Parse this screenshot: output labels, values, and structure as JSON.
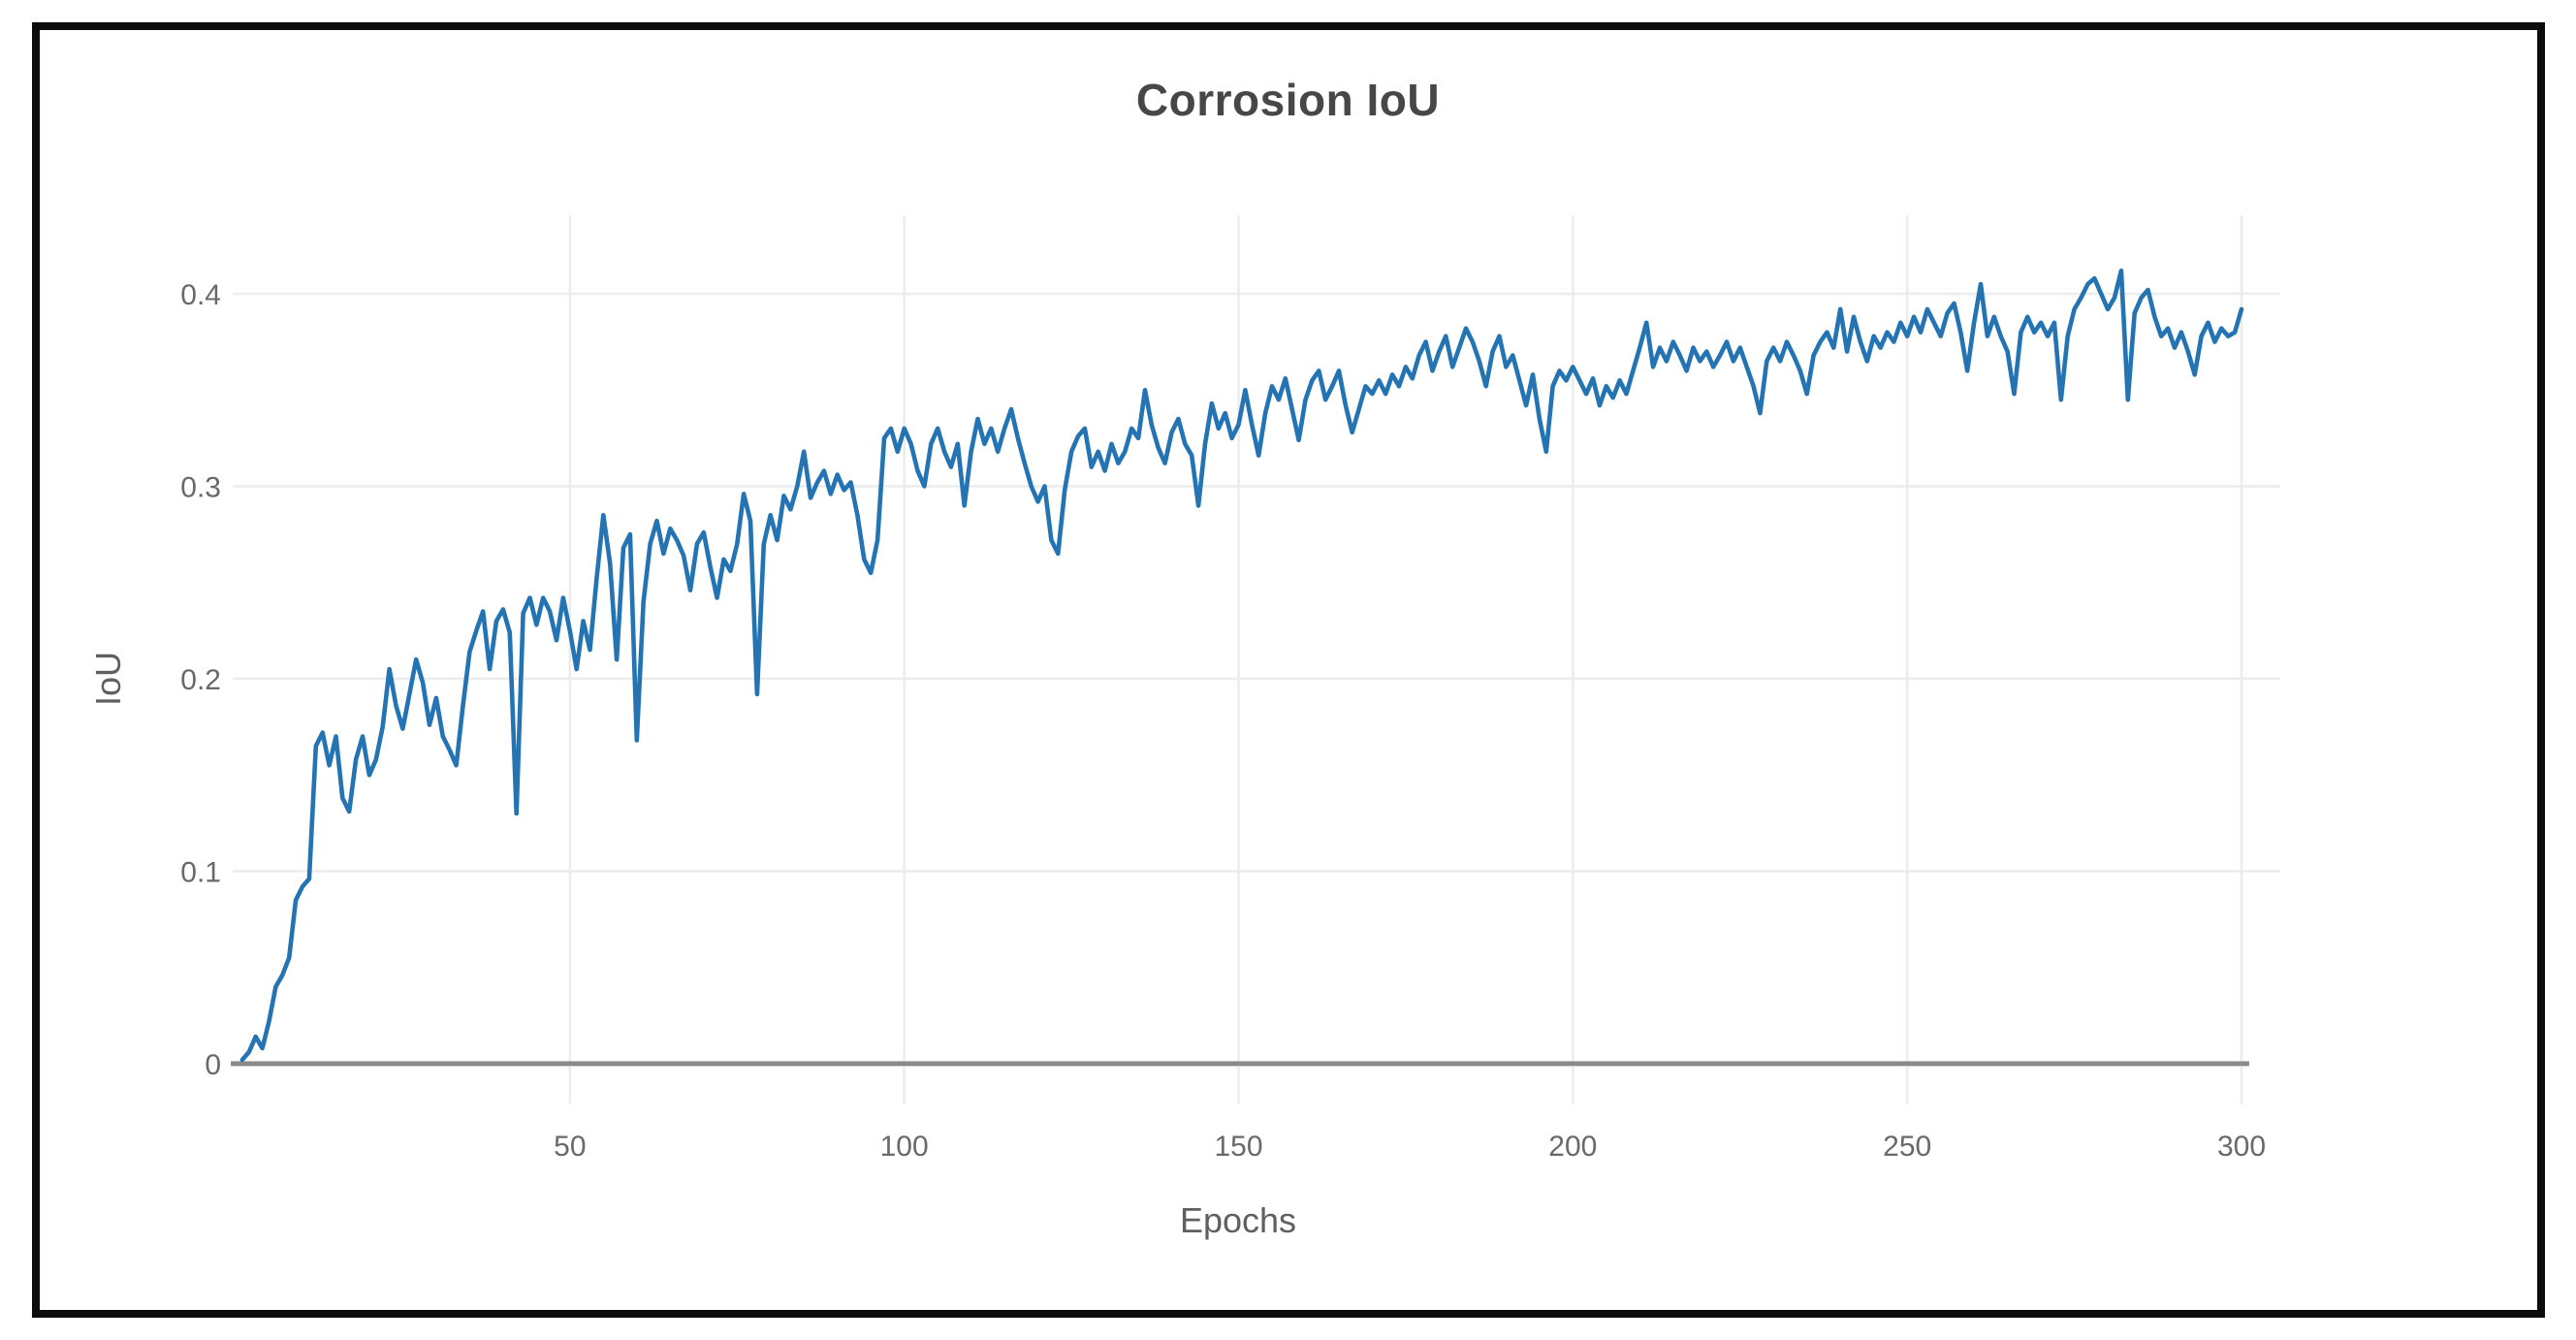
{
  "page": {
    "background_color": "#ffffff",
    "border_color": "#0d0d0d"
  },
  "chart_data": {
    "type": "line",
    "title": "Corrosion IoU",
    "xlabel": "Epochs",
    "ylabel": "IoU",
    "series_name": "Corrosion IoU",
    "line_color": "#2474b4",
    "grid": true,
    "grid_color": "#ececec",
    "axis_line_color": "#8a8a8a",
    "tick_label_color": "#696969",
    "title_color": "#474747",
    "x_ticks": [
      50,
      100,
      150,
      200,
      250,
      300
    ],
    "y_ticks": [
      0,
      0.1,
      0.2,
      0.3,
      0.4
    ],
    "y_tick_labels": [
      "0",
      "0.1",
      "0.2",
      "0.3",
      "0.4"
    ],
    "xlim": [
      0,
      300
    ],
    "ylim": [
      0,
      0.43
    ],
    "legend": "none",
    "x_start": 1,
    "x_step": 1,
    "values": [
      0.002,
      0.006,
      0.014,
      0.008,
      0.022,
      0.04,
      0.046,
      0.055,
      0.085,
      0.092,
      0.096,
      0.165,
      0.172,
      0.155,
      0.17,
      0.138,
      0.131,
      0.158,
      0.17,
      0.15,
      0.158,
      0.175,
      0.205,
      0.186,
      0.174,
      0.192,
      0.21,
      0.198,
      0.176,
      0.19,
      0.17,
      0.163,
      0.155,
      0.186,
      0.214,
      0.225,
      0.235,
      0.205,
      0.23,
      0.236,
      0.224,
      0.13,
      0.234,
      0.242,
      0.228,
      0.242,
      0.235,
      0.22,
      0.242,
      0.225,
      0.205,
      0.23,
      0.215,
      0.252,
      0.285,
      0.26,
      0.21,
      0.268,
      0.275,
      0.168,
      0.24,
      0.27,
      0.282,
      0.265,
      0.278,
      0.272,
      0.264,
      0.246,
      0.27,
      0.276,
      0.258,
      0.242,
      0.262,
      0.256,
      0.27,
      0.296,
      0.282,
      0.192,
      0.27,
      0.285,
      0.272,
      0.295,
      0.288,
      0.3,
      0.318,
      0.294,
      0.302,
      0.308,
      0.296,
      0.306,
      0.298,
      0.302,
      0.285,
      0.262,
      0.255,
      0.272,
      0.325,
      0.33,
      0.318,
      0.33,
      0.322,
      0.308,
      0.3,
      0.322,
      0.33,
      0.318,
      0.31,
      0.322,
      0.29,
      0.318,
      0.335,
      0.322,
      0.33,
      0.318,
      0.33,
      0.34,
      0.325,
      0.312,
      0.3,
      0.292,
      0.3,
      0.272,
      0.265,
      0.298,
      0.318,
      0.326,
      0.33,
      0.31,
      0.318,
      0.308,
      0.322,
      0.312,
      0.318,
      0.33,
      0.325,
      0.35,
      0.332,
      0.32,
      0.312,
      0.328,
      0.335,
      0.322,
      0.316,
      0.29,
      0.322,
      0.343,
      0.33,
      0.338,
      0.325,
      0.332,
      0.35,
      0.332,
      0.316,
      0.338,
      0.352,
      0.345,
      0.356,
      0.34,
      0.324,
      0.345,
      0.355,
      0.36,
      0.345,
      0.352,
      0.36,
      0.342,
      0.328,
      0.34,
      0.352,
      0.348,
      0.355,
      0.348,
      0.358,
      0.352,
      0.362,
      0.356,
      0.368,
      0.375,
      0.36,
      0.37,
      0.378,
      0.362,
      0.372,
      0.382,
      0.375,
      0.365,
      0.352,
      0.37,
      0.378,
      0.362,
      0.368,
      0.355,
      0.342,
      0.358,
      0.335,
      0.318,
      0.352,
      0.36,
      0.355,
      0.362,
      0.355,
      0.348,
      0.356,
      0.342,
      0.352,
      0.346,
      0.355,
      0.348,
      0.36,
      0.372,
      0.385,
      0.362,
      0.372,
      0.365,
      0.375,
      0.368,
      0.36,
      0.372,
      0.365,
      0.37,
      0.362,
      0.368,
      0.375,
      0.365,
      0.372,
      0.362,
      0.352,
      0.338,
      0.365,
      0.372,
      0.365,
      0.375,
      0.368,
      0.36,
      0.348,
      0.368,
      0.375,
      0.38,
      0.372,
      0.392,
      0.37,
      0.388,
      0.375,
      0.365,
      0.378,
      0.372,
      0.38,
      0.375,
      0.385,
      0.378,
      0.388,
      0.38,
      0.392,
      0.385,
      0.378,
      0.39,
      0.395,
      0.38,
      0.36,
      0.385,
      0.405,
      0.378,
      0.388,
      0.378,
      0.37,
      0.348,
      0.38,
      0.388,
      0.38,
      0.385,
      0.378,
      0.385,
      0.345,
      0.378,
      0.392,
      0.398,
      0.405,
      0.408,
      0.4,
      0.392,
      0.398,
      0.412,
      0.345,
      0.39,
      0.398,
      0.402,
      0.388,
      0.378,
      0.382,
      0.372,
      0.38,
      0.37,
      0.358,
      0.378,
      0.385,
      0.375,
      0.382,
      0.378,
      0.38,
      0.392
    ]
  }
}
